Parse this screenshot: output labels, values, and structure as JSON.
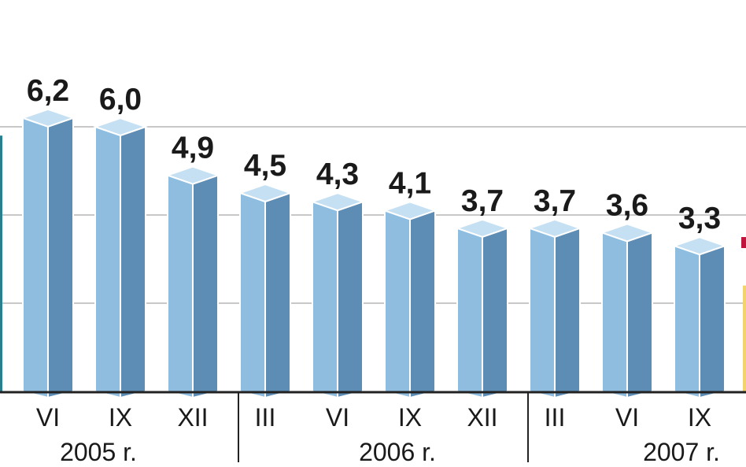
{
  "chart_data": {
    "type": "bar",
    "categories": [
      "VI",
      "IX",
      "XII",
      "III",
      "VI",
      "IX",
      "XII",
      "III",
      "VI",
      "IX"
    ],
    "value_labels": [
      "6,2",
      "6,0",
      "4,9",
      "4,5",
      "4,3",
      "4,1",
      "3,7",
      "3,7",
      "3,6",
      "3,3"
    ],
    "values": [
      6.2,
      6.0,
      4.9,
      4.5,
      4.3,
      4.1,
      3.7,
      3.7,
      3.6,
      3.3
    ],
    "groups": [
      {
        "label": "2005 r.",
        "count": 3
      },
      {
        "label": "2006 r.",
        "count": 4
      },
      {
        "label": "2007 r.",
        "count": 3
      }
    ],
    "ylim": [
      0,
      7
    ],
    "grid": true,
    "colors": {
      "bar_front": "#8fbde0",
      "bar_side": "#5d8db5",
      "bar_top": "#c6e0f3",
      "bar_edge": "#ffffff",
      "grid": "#c8c8c8",
      "axis": "#222222",
      "accent_left": "#2a7f8e",
      "accent_right_yellow": "#f3d36b",
      "accent_right_red": "#c0143c"
    }
  }
}
